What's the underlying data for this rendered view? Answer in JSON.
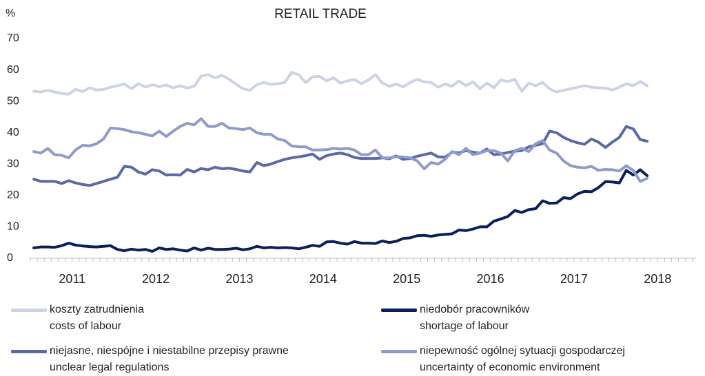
{
  "chart_data": {
    "type": "line",
    "title": "RETAIL TRADE",
    "ylabel": "%",
    "ylim": [
      0,
      70
    ],
    "yticks": [
      0,
      10,
      20,
      30,
      40,
      50,
      60,
      70
    ],
    "grid": false,
    "legend": "bottom",
    "categories": [
      null,
      null,
      null,
      null,
      null,
      null,
      "2011",
      null,
      null,
      null,
      null,
      null,
      null,
      null,
      null,
      null,
      null,
      null,
      "2012",
      null,
      null,
      null,
      null,
      null,
      null,
      null,
      null,
      null,
      null,
      null,
      "2013",
      null,
      null,
      null,
      null,
      null,
      null,
      null,
      null,
      null,
      null,
      null,
      "2014",
      null,
      null,
      null,
      null,
      null,
      null,
      null,
      null,
      null,
      null,
      null,
      "2015",
      null,
      null,
      null,
      null,
      null,
      null,
      null,
      null,
      null,
      null,
      null,
      "2016",
      null,
      null,
      null,
      null,
      null,
      null,
      null,
      null,
      null,
      null,
      null,
      "2017",
      null,
      null,
      null,
      null,
      null,
      null,
      null,
      null,
      null,
      null,
      null,
      "2018",
      null,
      null,
      null,
      null,
      null
    ],
    "series": [
      {
        "name": "koszty zatrudnienia\ncosts of labour",
        "color": "#cdd3e6",
        "values": [
          53.2,
          53,
          53.5,
          53,
          52.5,
          52.3,
          53.8,
          53.1,
          54.3,
          53.6,
          53.8,
          54.5,
          55,
          55.5,
          54,
          55.6,
          54.6,
          55.3,
          54.7,
          55.2,
          54.3,
          55,
          54.2,
          54.8,
          58,
          58.5,
          57.5,
          58.3,
          57,
          55.5,
          54,
          53.5,
          55.3,
          56,
          55.4,
          55.6,
          56,
          59.2,
          58.5,
          56,
          57.8,
          58,
          56.5,
          57.5,
          55.8,
          56.5,
          57,
          55.6,
          56.8,
          58.5,
          55.8,
          54.8,
          55.5,
          54.6,
          56,
          57,
          56.2,
          56,
          54.5,
          55.5,
          54.8,
          56.5,
          55,
          56.2,
          54,
          55.8,
          54.3,
          56.8,
          56.3,
          57,
          53.2,
          55.8,
          55,
          56,
          54,
          53,
          53.5,
          54,
          54.5,
          55,
          54.5,
          54.3,
          54.2,
          53.6,
          54.5,
          55.6,
          55,
          56.3,
          55,
          null,
          null,
          null,
          null,
          null,
          null,
          null
        ]
      },
      {
        "name": "niedobór pracowników\nshortage of labour",
        "color": "#0b1f5e",
        "values": [
          3.3,
          3.6,
          3.6,
          3.5,
          4,
          4.8,
          4.2,
          3.9,
          3.7,
          3.6,
          3.8,
          4,
          2.8,
          2.4,
          2.9,
          2.6,
          2.8,
          2.2,
          3.3,
          2.8,
          3,
          2.6,
          2.3,
          3.3,
          2.6,
          3.2,
          2.8,
          2.8,
          2.9,
          3.2,
          2.7,
          3,
          3.8,
          3.3,
          3.5,
          3.3,
          3.4,
          3.3,
          3,
          3.5,
          4.1,
          3.8,
          5.2,
          5.3,
          4.8,
          4.5,
          5.3,
          4.8,
          4.8,
          4.7,
          5.5,
          5,
          5.4,
          6.3,
          6.5,
          7.2,
          7.3,
          7,
          7.4,
          7.6,
          7.8,
          9,
          8.8,
          9.3,
          10,
          10,
          11.8,
          12.5,
          13.3,
          15.2,
          14.6,
          15.5,
          15.8,
          18.3,
          17.5,
          17.6,
          19.3,
          19,
          20.5,
          21.3,
          21.2,
          22.5,
          24.4,
          24.3,
          24,
          28,
          26.5,
          28.2,
          26.3,
          null,
          null,
          null,
          null,
          null,
          null,
          null
        ]
      },
      {
        "name": "niejasne, niespójne i niestabilne przepisy prawne\nunclear legal regulations",
        "color": "#5a6aa8",
        "values": [
          25.2,
          24.5,
          24.5,
          24.5,
          23.8,
          24.7,
          24,
          23.5,
          23.2,
          23.8,
          24.5,
          25.2,
          25.8,
          29.3,
          29,
          27.5,
          26.8,
          28.2,
          27.8,
          26.5,
          26.6,
          26.5,
          28.3,
          27.5,
          28.6,
          28.2,
          29,
          28.5,
          28.7,
          28.3,
          27.8,
          27.5,
          30.5,
          29.5,
          30,
          30.8,
          31.5,
          32,
          32.3,
          32.7,
          33.2,
          31.5,
          32.7,
          33.2,
          33.5,
          33,
          32.1,
          31.8,
          31.8,
          31.8,
          32,
          31.7,
          32.6,
          31.5,
          31.8,
          32.5,
          33,
          33.5,
          32.3,
          32.2,
          33.8,
          33.6,
          34.3,
          33.8,
          33.5,
          34.8,
          33,
          33.2,
          33.7,
          34.1,
          34.3,
          35.5,
          36,
          36.5,
          40.5,
          40,
          38.5,
          37.5,
          36.8,
          36.3,
          38,
          37,
          35.3,
          37,
          38.5,
          42,
          41.2,
          37.8,
          37.3,
          null,
          null,
          null,
          null,
          null,
          null,
          null
        ]
      },
      {
        "name": "niepewność ogólnej sytuacji gospodarczej\nuncertainty of economic environment",
        "color": "#8e9ccb",
        "values": [
          34,
          33.5,
          35,
          33,
          32.8,
          32,
          34.5,
          36,
          35.8,
          36.5,
          38,
          41.5,
          41.3,
          41,
          40.3,
          40,
          39.5,
          39,
          40.5,
          38.8,
          40.5,
          42,
          43,
          42.5,
          44.5,
          42,
          42,
          43,
          41.5,
          41.3,
          41,
          41.5,
          40,
          39.5,
          39.5,
          38,
          37.5,
          35.8,
          35.5,
          35.5,
          34.5,
          34.5,
          34.6,
          35,
          34.8,
          35,
          34.5,
          33,
          33,
          34.5,
          32,
          32,
          32.3,
          32.3,
          32,
          31,
          28.5,
          30.5,
          30,
          31.5,
          34,
          33,
          35,
          33,
          33.5,
          34.3,
          34.3,
          33.5,
          31,
          34.3,
          35,
          34,
          36.5,
          37.5,
          34.5,
          33.5,
          31,
          29.5,
          29,
          28.8,
          29.3,
          28,
          28.3,
          28.2,
          27.8,
          29.5,
          28,
          24.5,
          25.5,
          null,
          null,
          null,
          null,
          null,
          null,
          null
        ]
      }
    ]
  }
}
